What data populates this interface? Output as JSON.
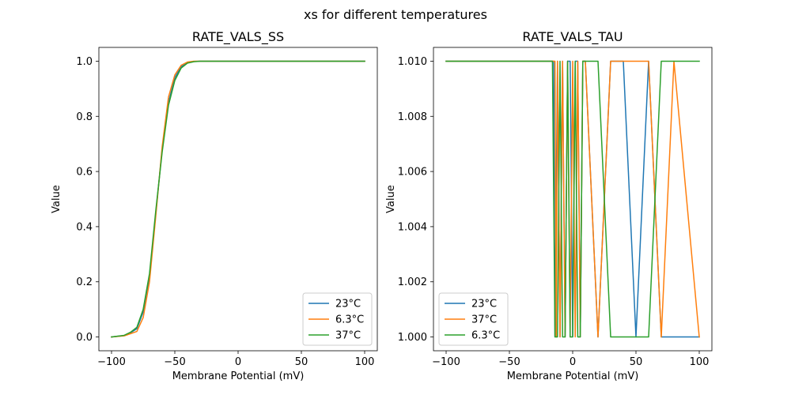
{
  "figure": {
    "suptitle": "xs for different temperatures"
  },
  "chart_data": [
    {
      "type": "line",
      "title": "RATE_VALS_SS",
      "xlabel": "Membrane Potential (mV)",
      "ylabel": "Value",
      "xlim": [
        -110,
        110
      ],
      "ylim": [
        -0.05,
        1.05
      ],
      "xticks": [
        -100,
        -50,
        0,
        50,
        100
      ],
      "xtick_labels": [
        "−100",
        "−50",
        "0",
        "50",
        "100"
      ],
      "yticks": [
        0.0,
        0.2,
        0.4,
        0.6,
        0.8,
        1.0
      ],
      "ytick_labels": [
        "0.0",
        "0.2",
        "0.4",
        "0.6",
        "0.8",
        "1.0"
      ],
      "grid": false,
      "legend_position": "lower-right",
      "series": [
        {
          "name": "23°C",
          "color": "#1f77b4",
          "x": [
            -100,
            -90,
            -85,
            -80,
            -75,
            -70,
            -65,
            -60,
            -55,
            -50,
            -45,
            -40,
            -35,
            -30,
            -20,
            0,
            50,
            100
          ],
          "y": [
            0.0,
            0.005,
            0.015,
            0.03,
            0.09,
            0.22,
            0.45,
            0.68,
            0.85,
            0.94,
            0.98,
            0.995,
            0.999,
            1.0,
            1.0,
            1.0,
            1.0,
            1.0
          ]
        },
        {
          "name": "6.3°C",
          "color": "#ff7f0e",
          "x": [
            -100,
            -90,
            -85,
            -80,
            -75,
            -70,
            -65,
            -60,
            -55,
            -50,
            -45,
            -40,
            -35,
            -30,
            -20,
            0,
            50,
            100
          ],
          "y": [
            0.0,
            0.004,
            0.012,
            0.02,
            0.07,
            0.2,
            0.44,
            0.69,
            0.87,
            0.95,
            0.985,
            0.997,
            1.0,
            1.0,
            1.0,
            1.0,
            1.0,
            1.0
          ]
        },
        {
          "name": "37°C",
          "color": "#2ca02c",
          "x": [
            -100,
            -90,
            -85,
            -80,
            -75,
            -70,
            -65,
            -60,
            -55,
            -50,
            -45,
            -40,
            -35,
            -30,
            -20,
            0,
            50,
            100
          ],
          "y": [
            0.0,
            0.006,
            0.017,
            0.035,
            0.1,
            0.23,
            0.46,
            0.67,
            0.84,
            0.93,
            0.975,
            0.993,
            0.998,
            1.0,
            1.0,
            1.0,
            1.0,
            1.0
          ]
        }
      ]
    },
    {
      "type": "line",
      "title": "RATE_VALS_TAU",
      "xlabel": "Membrane Potential (mV)",
      "ylabel": "Value",
      "xlim": [
        -110,
        110
      ],
      "ylim": [
        0.9995,
        1.0105
      ],
      "xticks": [
        -100,
        -50,
        0,
        50,
        100
      ],
      "xtick_labels": [
        "−100",
        "−50",
        "0",
        "50",
        "100"
      ],
      "yticks": [
        1.0,
        1.002,
        1.004,
        1.006,
        1.008,
        1.01
      ],
      "ytick_labels": [
        "1.000",
        "1.002",
        "1.004",
        "1.006",
        "1.008",
        "1.010"
      ],
      "grid": false,
      "legend_position": "lower-left",
      "series": [
        {
          "name": "23°C",
          "color": "#1f77b4",
          "x": [
            -100,
            -15,
            -14,
            -12,
            -10,
            -8,
            -6,
            -4,
            -2,
            0,
            2,
            4,
            6,
            8,
            10,
            20,
            30,
            40,
            50,
            60,
            70,
            80,
            90,
            100
          ],
          "y": [
            1.01,
            1.01,
            1.0,
            1.01,
            1.0,
            1.01,
            1.0,
            1.01,
            1.01,
            1.0,
            1.01,
            1.01,
            1.0,
            1.01,
            1.01,
            1.0,
            1.01,
            1.01,
            1.0,
            1.01,
            1.0,
            1.0,
            1.0,
            1.0
          ]
        },
        {
          "name": "37°C",
          "color": "#ff7f0e",
          "x": [
            -100,
            -14,
            -13,
            -12,
            -10,
            -8,
            -6,
            -4,
            -2,
            0,
            2,
            4,
            6,
            8,
            10,
            20,
            30,
            40,
            50,
            60,
            70,
            80,
            90,
            100
          ],
          "y": [
            1.01,
            1.01,
            1.0,
            1.01,
            1.0,
            1.01,
            1.0,
            1.01,
            1.0,
            1.01,
            1.0,
            1.01,
            1.0,
            1.01,
            1.01,
            1.0,
            1.01,
            1.01,
            1.01,
            1.01,
            1.0,
            1.01,
            1.005,
            1.0
          ]
        },
        {
          "name": "6.3°C",
          "color": "#2ca02c",
          "x": [
            -100,
            -16,
            -14,
            -12,
            -10,
            -8,
            -6,
            -4,
            -2,
            0,
            2,
            4,
            6,
            8,
            10,
            20,
            30,
            40,
            50,
            60,
            70,
            80,
            90,
            100
          ],
          "y": [
            1.01,
            1.01,
            1.0,
            1.0,
            1.01,
            1.0,
            1.0,
            1.01,
            1.0,
            1.0,
            1.01,
            1.0,
            1.0,
            1.01,
            1.01,
            1.01,
            1.0,
            1.0,
            1.0,
            1.0,
            1.01,
            1.01,
            1.01,
            1.01
          ]
        }
      ]
    }
  ]
}
